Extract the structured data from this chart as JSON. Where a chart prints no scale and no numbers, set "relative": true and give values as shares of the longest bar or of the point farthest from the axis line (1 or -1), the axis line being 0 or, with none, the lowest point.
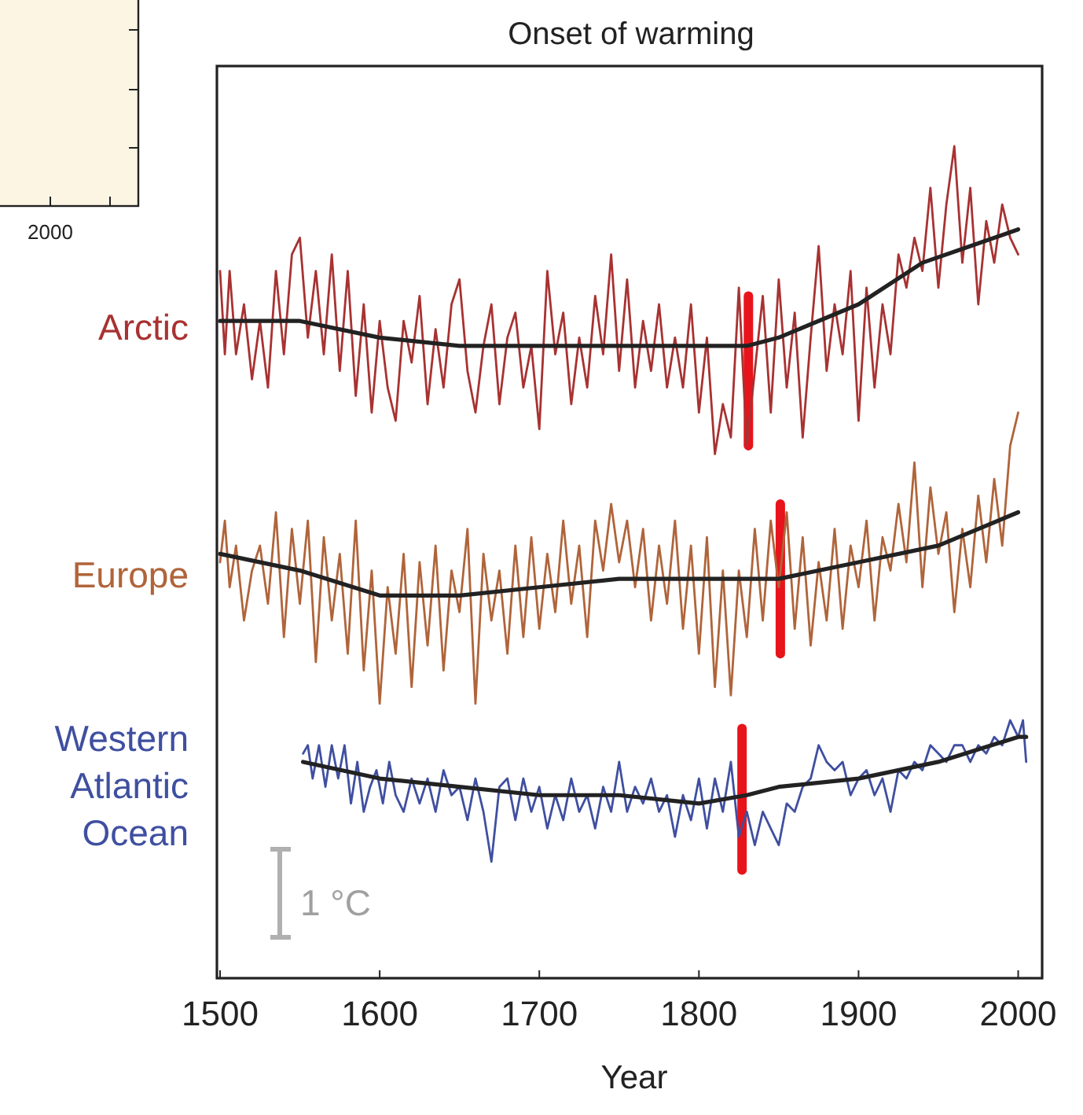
{
  "chart_data": [
    {
      "type": "other",
      "annotations": [
        "2000"
      ]
    },
    {
      "type": "line",
      "title": "Onset of warming",
      "xlabel": "Year",
      "relative": true,
      "xlim": [
        1500,
        2015
      ],
      "xticks": [
        1500,
        1600,
        1700,
        1800,
        1900,
        2000
      ],
      "grid": false,
      "legend": false,
      "annotations": [
        "1 °C"
      ],
      "series": [
        {
          "color": "#e8141b",
          "x": [
            1831,
            1831
          ],
          "values": [
            0.64,
            0.82
          ]
        },
        {
          "color": "#e8141b",
          "x": [
            1851,
            1851
          ],
          "values": [
            0.39,
            0.57
          ]
        },
        {
          "color": "#e8141b",
          "x": [
            1827,
            1827
          ],
          "values": [
            0.13,
            0.3
          ]
        },
        {
          "name": "Arctic",
          "color": "#a83232",
          "x": [
            1500,
            1503,
            1506,
            1510,
            1515,
            1520,
            1525,
            1530,
            1535,
            1540,
            1545,
            1550,
            1555,
            1560,
            1565,
            1570,
            1575,
            1580,
            1585,
            1590,
            1595,
            1600,
            1605,
            1610,
            1615,
            1620,
            1625,
            1630,
            1635,
            1640,
            1645,
            1650,
            1655,
            1660,
            1665,
            1670,
            1675,
            1680,
            1685,
            1690,
            1695,
            1700,
            1705,
            1710,
            1715,
            1720,
            1725,
            1730,
            1735,
            1740,
            1745,
            1750,
            1755,
            1760,
            1765,
            1770,
            1775,
            1780,
            1785,
            1790,
            1795,
            1800,
            1805,
            1810,
            1815,
            1820,
            1825,
            1830,
            1835,
            1840,
            1845,
            1850,
            1855,
            1860,
            1865,
            1870,
            1875,
            1880,
            1885,
            1890,
            1895,
            1900,
            1905,
            1910,
            1915,
            1920,
            1925,
            1930,
            1935,
            1940,
            1945,
            1950,
            1955,
            1960,
            1965,
            1970,
            1975,
            1980,
            1985,
            1990,
            1995,
            2000
          ],
          "values": [
            0.85,
            0.75,
            0.85,
            0.75,
            0.81,
            0.72,
            0.79,
            0.71,
            0.85,
            0.75,
            0.87,
            0.89,
            0.77,
            0.85,
            0.75,
            0.87,
            0.73,
            0.85,
            0.7,
            0.81,
            0.68,
            0.79,
            0.71,
            0.67,
            0.79,
            0.74,
            0.82,
            0.69,
            0.78,
            0.71,
            0.81,
            0.84,
            0.73,
            0.68,
            0.76,
            0.81,
            0.69,
            0.77,
            0.8,
            0.71,
            0.76,
            0.66,
            0.85,
            0.75,
            0.8,
            0.69,
            0.77,
            0.71,
            0.82,
            0.75,
            0.87,
            0.73,
            0.84,
            0.71,
            0.79,
            0.73,
            0.81,
            0.71,
            0.77,
            0.71,
            0.81,
            0.68,
            0.77,
            0.63,
            0.69,
            0.65,
            0.83,
            0.64,
            0.73,
            0.82,
            0.68,
            0.84,
            0.71,
            0.8,
            0.65,
            0.77,
            0.88,
            0.73,
            0.81,
            0.75,
            0.85,
            0.67,
            0.83,
            0.71,
            0.81,
            0.75,
            0.87,
            0.83,
            0.89,
            0.85,
            0.95,
            0.83,
            0.93,
            1.0,
            0.86,
            0.95,
            0.81,
            0.91,
            0.86,
            0.93,
            0.89,
            0.87
          ]
        },
        {
          "color": "#222222",
          "x": [
            1500,
            1550,
            1600,
            1650,
            1700,
            1750,
            1800,
            1830,
            1850,
            1900,
            1940,
            1970,
            2000
          ],
          "values": [
            0.79,
            0.79,
            0.77,
            0.76,
            0.76,
            0.76,
            0.76,
            0.76,
            0.77,
            0.81,
            0.86,
            0.88,
            0.9
          ]
        },
        {
          "name": "Europe",
          "color": "#b0643a",
          "x": [
            1500,
            1503,
            1506,
            1510,
            1515,
            1520,
            1525,
            1530,
            1535,
            1540,
            1545,
            1550,
            1555,
            1560,
            1565,
            1570,
            1575,
            1580,
            1585,
            1590,
            1595,
            1600,
            1605,
            1610,
            1615,
            1620,
            1625,
            1630,
            1635,
            1640,
            1645,
            1650,
            1655,
            1660,
            1665,
            1670,
            1675,
            1680,
            1685,
            1690,
            1695,
            1700,
            1705,
            1710,
            1715,
            1720,
            1725,
            1730,
            1735,
            1740,
            1745,
            1750,
            1755,
            1760,
            1765,
            1770,
            1775,
            1780,
            1785,
            1790,
            1795,
            1800,
            1805,
            1810,
            1815,
            1820,
            1825,
            1830,
            1835,
            1840,
            1845,
            1850,
            1855,
            1860,
            1865,
            1870,
            1875,
            1880,
            1885,
            1890,
            1895,
            1900,
            1905,
            1910,
            1915,
            1920,
            1925,
            1930,
            1935,
            1940,
            1945,
            1950,
            1955,
            1960,
            1965,
            1970,
            1975,
            1980,
            1985,
            1990,
            1995,
            2000
          ],
          "values": [
            0.5,
            0.55,
            0.47,
            0.52,
            0.43,
            0.49,
            0.52,
            0.45,
            0.56,
            0.41,
            0.54,
            0.45,
            0.55,
            0.38,
            0.53,
            0.43,
            0.51,
            0.39,
            0.55,
            0.37,
            0.49,
            0.33,
            0.47,
            0.39,
            0.51,
            0.35,
            0.5,
            0.4,
            0.52,
            0.37,
            0.49,
            0.44,
            0.54,
            0.33,
            0.51,
            0.43,
            0.49,
            0.39,
            0.52,
            0.41,
            0.53,
            0.42,
            0.51,
            0.44,
            0.55,
            0.45,
            0.52,
            0.41,
            0.55,
            0.49,
            0.57,
            0.5,
            0.55,
            0.47,
            0.54,
            0.43,
            0.52,
            0.45,
            0.55,
            0.42,
            0.52,
            0.39,
            0.53,
            0.35,
            0.49,
            0.34,
            0.49,
            0.41,
            0.54,
            0.43,
            0.55,
            0.47,
            0.56,
            0.42,
            0.53,
            0.4,
            0.5,
            0.43,
            0.54,
            0.42,
            0.52,
            0.47,
            0.55,
            0.43,
            0.53,
            0.49,
            0.57,
            0.5,
            0.62,
            0.47,
            0.59,
            0.51,
            0.56,
            0.44,
            0.54,
            0.47,
            0.58,
            0.5,
            0.6,
            0.52,
            0.64,
            0.68
          ]
        },
        {
          "color": "#222222",
          "x": [
            1500,
            1550,
            1600,
            1650,
            1700,
            1750,
            1800,
            1850,
            1900,
            1950,
            2000
          ],
          "values": [
            0.51,
            0.49,
            0.46,
            0.46,
            0.47,
            0.48,
            0.48,
            0.48,
            0.5,
            0.52,
            0.56
          ]
        },
        {
          "name": "Western Atlantic Ocean",
          "color": "#3f4fa0",
          "x": [
            1552,
            1555,
            1558,
            1562,
            1566,
            1570,
            1574,
            1578,
            1582,
            1586,
            1590,
            1594,
            1598,
            1602,
            1606,
            1610,
            1615,
            1620,
            1625,
            1630,
            1635,
            1640,
            1645,
            1650,
            1655,
            1660,
            1665,
            1670,
            1675,
            1680,
            1685,
            1690,
            1695,
            1700,
            1705,
            1710,
            1715,
            1720,
            1725,
            1730,
            1735,
            1740,
            1745,
            1750,
            1755,
            1760,
            1765,
            1770,
            1775,
            1780,
            1785,
            1790,
            1795,
            1800,
            1805,
            1810,
            1815,
            1820,
            1825,
            1830,
            1835,
            1840,
            1845,
            1850,
            1855,
            1860,
            1865,
            1870,
            1875,
            1880,
            1885,
            1890,
            1895,
            1900,
            1905,
            1910,
            1915,
            1920,
            1925,
            1930,
            1935,
            1940,
            1945,
            1950,
            1955,
            1960,
            1965,
            1970,
            1975,
            1980,
            1985,
            1990,
            1995,
            2000,
            2003,
            2005
          ],
          "values": [
            0.27,
            0.28,
            0.24,
            0.28,
            0.23,
            0.28,
            0.24,
            0.28,
            0.21,
            0.26,
            0.2,
            0.23,
            0.25,
            0.21,
            0.26,
            0.22,
            0.2,
            0.24,
            0.21,
            0.24,
            0.2,
            0.25,
            0.22,
            0.23,
            0.19,
            0.24,
            0.2,
            0.14,
            0.23,
            0.24,
            0.19,
            0.24,
            0.2,
            0.23,
            0.18,
            0.22,
            0.19,
            0.24,
            0.2,
            0.22,
            0.18,
            0.23,
            0.2,
            0.26,
            0.2,
            0.23,
            0.21,
            0.24,
            0.2,
            0.22,
            0.17,
            0.22,
            0.19,
            0.24,
            0.18,
            0.24,
            0.2,
            0.26,
            0.17,
            0.2,
            0.16,
            0.2,
            0.18,
            0.16,
            0.21,
            0.2,
            0.23,
            0.24,
            0.28,
            0.26,
            0.25,
            0.26,
            0.22,
            0.24,
            0.25,
            0.22,
            0.24,
            0.2,
            0.25,
            0.24,
            0.26,
            0.25,
            0.28,
            0.27,
            0.26,
            0.28,
            0.28,
            0.26,
            0.28,
            0.27,
            0.29,
            0.28,
            0.31,
            0.29,
            0.31,
            0.26
          ]
        },
        {
          "color": "#222222",
          "x": [
            1552,
            1600,
            1650,
            1700,
            1750,
            1800,
            1830,
            1850,
            1900,
            1950,
            2000,
            2005
          ],
          "values": [
            0.26,
            0.24,
            0.23,
            0.22,
            0.22,
            0.21,
            0.22,
            0.23,
            0.24,
            0.26,
            0.29,
            0.29
          ]
        }
      ]
    }
  ]
}
